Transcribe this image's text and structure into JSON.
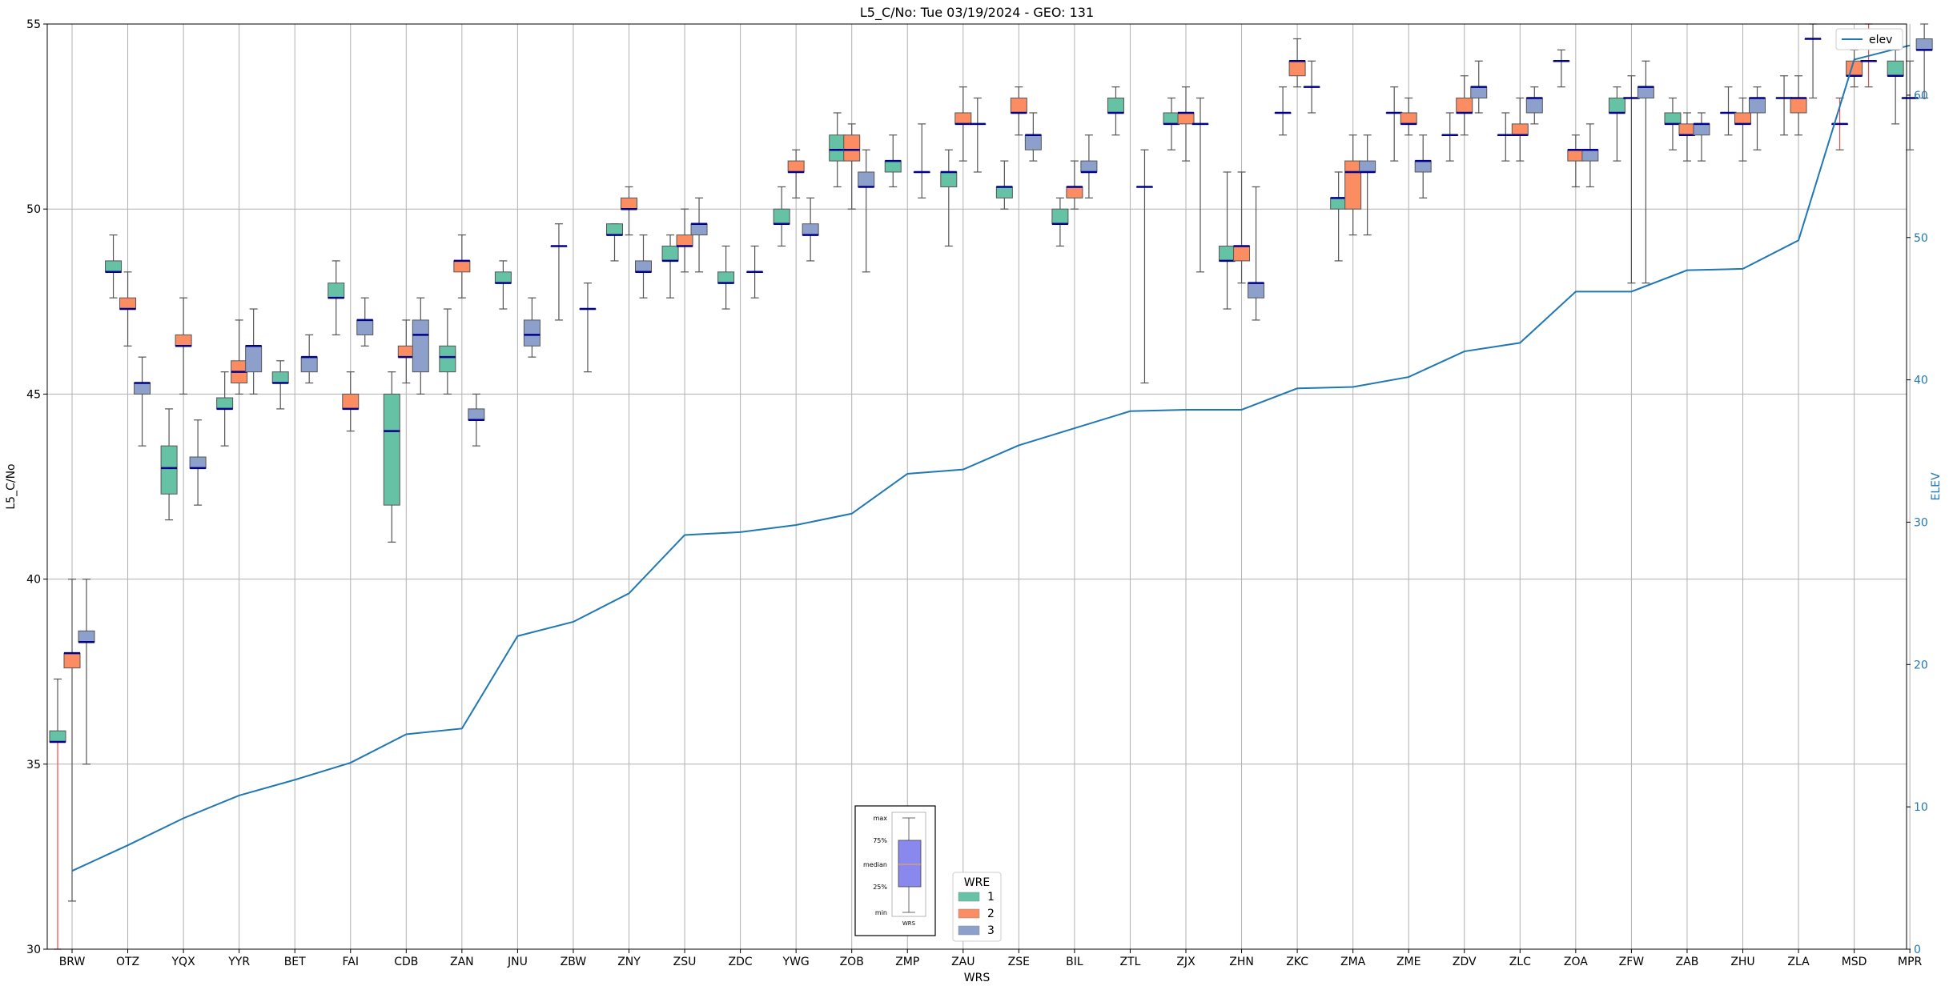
{
  "chart_data": {
    "type": "box",
    "title": "L5_C/No: Tue 03/19/2024 - GEO: 131",
    "xlabel": "WRS",
    "ylabel": "L5_C/No",
    "y2label": "ELEV",
    "ylim": [
      30,
      55
    ],
    "y2lim": [
      0,
      65
    ],
    "yticks": [
      30,
      35,
      40,
      45,
      50,
      55
    ],
    "y2ticks": [
      0,
      10,
      20,
      30,
      40,
      50,
      60
    ],
    "grid": true,
    "categories": [
      "BRW",
      "OTZ",
      "YQX",
      "YYR",
      "BET",
      "FAI",
      "CDB",
      "ZAN",
      "JNU",
      "ZBW",
      "ZNY",
      "ZSU",
      "ZDC",
      "YWG",
      "ZOB",
      "ZMP",
      "ZAU",
      "ZSE",
      "BIL",
      "ZTL",
      "ZJX",
      "ZHN",
      "ZKC",
      "ZMA",
      "ZME",
      "ZDV",
      "ZLC",
      "ZOA",
      "ZFW",
      "ZAB",
      "ZHU",
      "ZLA",
      "MSD",
      "MPR"
    ],
    "legend": {
      "title": "WRE",
      "placement": "bottom-center",
      "entries": [
        {
          "label": "1",
          "color": "#66c2a5"
        },
        {
          "label": "2",
          "color": "#fc8d62"
        },
        {
          "label": "3",
          "color": "#8da0cb"
        }
      ]
    },
    "line_legend": {
      "label": "elev",
      "color": "#1f77b4",
      "placement": "top-right"
    },
    "key_box": {
      "labels": [
        "max",
        "75%",
        "median",
        "25%",
        "min"
      ],
      "xlabel": "WRS"
    },
    "elev": [
      5.5,
      7.3,
      9.2,
      10.8,
      11.9,
      13.1,
      15.1,
      15.5,
      22.0,
      23.0,
      25.0,
      29.1,
      29.3,
      29.8,
      30.6,
      33.4,
      33.7,
      35.4,
      36.6,
      37.8,
      37.9,
      37.9,
      39.4,
      39.5,
      40.2,
      42.0,
      42.6,
      46.2,
      46.2,
      47.7,
      47.8,
      49.8,
      62.5,
      63.5
    ],
    "series": [
      {
        "name": "1",
        "color": "#66c2a5",
        "boxes": [
          {
            "cat": "BRW",
            "min": 30,
            "q1": 35.6,
            "median": 35.6,
            "q3": 35.9,
            "max": 37.3,
            "low_whisker_red": true
          },
          {
            "cat": "OTZ",
            "min": 47.6,
            "q1": 48.3,
            "median": 48.3,
            "q3": 48.6,
            "max": 49.3
          },
          {
            "cat": "YQX",
            "min": 41.6,
            "q1": 42.3,
            "median": 43.0,
            "q3": 43.6,
            "max": 44.6
          },
          {
            "cat": "YYR",
            "min": 43.6,
            "q1": 44.6,
            "median": 44.6,
            "q3": 44.9,
            "max": 45.6
          },
          {
            "cat": "BET",
            "min": 44.6,
            "q1": 45.3,
            "median": 45.3,
            "q3": 45.6,
            "max": 45.9
          },
          {
            "cat": "FAI",
            "min": 46.6,
            "q1": 47.6,
            "median": 47.6,
            "q3": 48.0,
            "max": 48.6
          },
          {
            "cat": "CDB",
            "min": 41.0,
            "q1": 42.0,
            "median": 44.0,
            "q3": 45.0,
            "max": 45.6
          },
          {
            "cat": "ZAN",
            "min": 45.0,
            "q1": 45.6,
            "median": 46.0,
            "q3": 46.3,
            "max": 47.3
          },
          {
            "cat": "JNU",
            "min": 47.3,
            "q1": 48.0,
            "median": 48.0,
            "q3": 48.3,
            "max": 48.6
          },
          {
            "cat": "ZBW",
            "min": 47.0,
            "q1": 49.0,
            "median": 49.0,
            "q3": 49.0,
            "max": 49.6
          },
          {
            "cat": "ZNY",
            "min": 48.6,
            "q1": 49.3,
            "median": 49.3,
            "q3": 49.6,
            "max": 49.6
          },
          {
            "cat": "ZSU",
            "min": 47.6,
            "q1": 48.6,
            "median": 48.6,
            "q3": 49.0,
            "max": 49.3
          },
          {
            "cat": "ZDC",
            "min": 47.3,
            "q1": 48.0,
            "median": 48.0,
            "q3": 48.3,
            "max": 49.0
          },
          {
            "cat": "YWG",
            "min": 49.0,
            "q1": 49.6,
            "median": 49.6,
            "q3": 50.0,
            "max": 50.6
          },
          {
            "cat": "ZOB",
            "min": 50.6,
            "q1": 51.3,
            "median": 51.6,
            "q3": 52.0,
            "max": 52.6
          },
          {
            "cat": "ZMP",
            "min": 50.6,
            "q1": 51.0,
            "median": 51.3,
            "q3": 51.3,
            "max": 52.0
          },
          {
            "cat": "ZAU",
            "min": 49.0,
            "q1": 50.6,
            "median": 51.0,
            "q3": 51.0,
            "max": 51.6
          },
          {
            "cat": "ZSE",
            "min": 50.0,
            "q1": 50.3,
            "median": 50.6,
            "q3": 50.6,
            "max": 51.3
          },
          {
            "cat": "BIL",
            "min": 49.0,
            "q1": 49.6,
            "median": 49.6,
            "q3": 50.0,
            "max": 50.3
          },
          {
            "cat": "ZTL",
            "min": 52.0,
            "q1": 52.6,
            "median": 52.6,
            "q3": 53.0,
            "max": 53.3
          },
          {
            "cat": "ZJX",
            "min": 51.6,
            "q1": 52.3,
            "median": 52.3,
            "q3": 52.6,
            "max": 53.0
          },
          {
            "cat": "ZHN",
            "min": 47.3,
            "q1": 48.6,
            "median": 48.6,
            "q3": 49.0,
            "max": 51.0
          },
          {
            "cat": "ZKC",
            "min": 52.0,
            "q1": 52.6,
            "median": 52.6,
            "q3": 52.6,
            "max": 53.3
          },
          {
            "cat": "ZMA",
            "min": 48.6,
            "q1": 50.0,
            "median": 50.3,
            "q3": 50.3,
            "max": 51.0
          },
          {
            "cat": "ZME",
            "min": 51.3,
            "q1": 52.6,
            "median": 52.6,
            "q3": 52.6,
            "max": 53.3
          },
          {
            "cat": "ZDV",
            "min": 51.3,
            "q1": 52.0,
            "median": 52.0,
            "q3": 52.0,
            "max": 52.6
          },
          {
            "cat": "ZLC",
            "min": 51.3,
            "q1": 52.0,
            "median": 52.0,
            "q3": 52.0,
            "max": 52.6
          },
          {
            "cat": "ZOA",
            "min": 53.3,
            "q1": 54.0,
            "median": 54.0,
            "q3": 54.0,
            "max": 54.3
          },
          {
            "cat": "ZFW",
            "min": 51.3,
            "q1": 52.6,
            "median": 52.6,
            "q3": 53.0,
            "max": 53.3
          },
          {
            "cat": "ZAB",
            "min": 51.6,
            "q1": 52.3,
            "median": 52.3,
            "q3": 52.6,
            "max": 53.0
          },
          {
            "cat": "ZHU",
            "min": 52.0,
            "q1": 52.6,
            "median": 52.6,
            "q3": 52.6,
            "max": 53.3
          },
          {
            "cat": "ZLA",
            "min": 52.0,
            "q1": 53.0,
            "median": 53.0,
            "q3": 53.0,
            "max": 53.6
          },
          {
            "cat": "MSD",
            "min": 51.6,
            "q1": 52.3,
            "median": 52.3,
            "q3": 52.3,
            "max": 53.0,
            "whisker_red": true
          },
          {
            "cat": "MPR",
            "min": 52.3,
            "q1": 53.6,
            "median": 53.6,
            "q3": 54.0,
            "max": 54.3
          }
        ]
      },
      {
        "name": "2",
        "color": "#fc8d62",
        "boxes": [
          {
            "cat": "BRW",
            "min": 31.3,
            "q1": 37.6,
            "median": 38.0,
            "q3": 38.0,
            "max": 40.0
          },
          {
            "cat": "OTZ",
            "min": 46.3,
            "q1": 47.3,
            "median": 47.3,
            "q3": 47.6,
            "max": 48.3
          },
          {
            "cat": "YQX",
            "min": 45.0,
            "q1": 46.3,
            "median": 46.3,
            "q3": 46.6,
            "max": 47.6
          },
          {
            "cat": "YYR",
            "min": 45.0,
            "q1": 45.3,
            "median": 45.6,
            "q3": 45.9,
            "max": 47.0
          },
          {
            "cat": "FAI",
            "min": 44.0,
            "q1": 44.6,
            "median": 44.6,
            "q3": 45.0,
            "max": 45.6
          },
          {
            "cat": "CDB",
            "min": 45.3,
            "q1": 46.0,
            "median": 46.0,
            "q3": 46.3,
            "max": 47.0
          },
          {
            "cat": "ZAN",
            "min": 47.6,
            "q1": 48.3,
            "median": 48.6,
            "q3": 48.6,
            "max": 49.3
          },
          {
            "cat": "ZNY",
            "min": 49.3,
            "q1": 50.0,
            "median": 50.0,
            "q3": 50.3,
            "max": 50.6
          },
          {
            "cat": "ZSU",
            "min": 48.3,
            "q1": 49.0,
            "median": 49.0,
            "q3": 49.3,
            "max": 50.0
          },
          {
            "cat": "YWG",
            "min": 50.3,
            "q1": 51.0,
            "median": 51.0,
            "q3": 51.3,
            "max": 51.6
          },
          {
            "cat": "ZOB",
            "min": 50.0,
            "q1": 51.3,
            "median": 51.6,
            "q3": 52.0,
            "max": 52.3
          },
          {
            "cat": "ZAU",
            "min": 51.3,
            "q1": 52.3,
            "median": 52.3,
            "q3": 52.6,
            "max": 53.3
          },
          {
            "cat": "ZSE",
            "min": 52.0,
            "q1": 52.6,
            "median": 52.6,
            "q3": 53.0,
            "max": 53.3
          },
          {
            "cat": "BIL",
            "min": 50.0,
            "q1": 50.3,
            "median": 50.6,
            "q3": 50.6,
            "max": 51.3
          },
          {
            "cat": "ZJX",
            "min": 51.3,
            "q1": 52.3,
            "median": 52.6,
            "q3": 52.6,
            "max": 53.3
          },
          {
            "cat": "ZHN",
            "min": 48.0,
            "q1": 48.6,
            "median": 49.0,
            "q3": 49.0,
            "max": 51.0
          },
          {
            "cat": "ZKC",
            "min": 53.3,
            "q1": 53.6,
            "median": 54.0,
            "q3": 54.0,
            "max": 54.6
          },
          {
            "cat": "ZMA",
            "min": 49.3,
            "q1": 50.0,
            "median": 51.0,
            "q3": 51.3,
            "max": 52.0
          },
          {
            "cat": "ZME",
            "min": 52.0,
            "q1": 52.3,
            "median": 52.3,
            "q3": 52.6,
            "max": 53.0
          },
          {
            "cat": "ZDV",
            "min": 52.0,
            "q1": 52.6,
            "median": 52.6,
            "q3": 53.0,
            "max": 53.6
          },
          {
            "cat": "ZLC",
            "min": 51.3,
            "q1": 52.0,
            "median": 52.0,
            "q3": 52.3,
            "max": 53.0
          },
          {
            "cat": "ZOA",
            "min": 50.6,
            "q1": 51.3,
            "median": 51.6,
            "q3": 51.6,
            "max": 52.0
          },
          {
            "cat": "ZFW",
            "min": 48.0,
            "q1": 53.0,
            "median": 53.0,
            "q3": 53.0,
            "max": 53.6
          },
          {
            "cat": "ZAB",
            "min": 51.3,
            "q1": 52.0,
            "median": 52.0,
            "q3": 52.3,
            "max": 52.6
          },
          {
            "cat": "ZHU",
            "min": 51.3,
            "q1": 52.3,
            "median": 52.3,
            "q3": 52.6,
            "max": 53.0
          },
          {
            "cat": "ZLA",
            "min": 52.0,
            "q1": 52.6,
            "median": 53.0,
            "q3": 53.0,
            "max": 53.6
          },
          {
            "cat": "MSD",
            "min": 53.3,
            "q1": 53.6,
            "median": 53.6,
            "q3": 54.0,
            "max": 54.3
          },
          {
            "cat": "MPR",
            "min": 51.6,
            "q1": 53.0,
            "median": 53.0,
            "q3": 53.0,
            "max": 54.0
          }
        ]
      },
      {
        "name": "3",
        "color": "#8da0cb",
        "boxes": [
          {
            "cat": "BRW",
            "min": 35.0,
            "q1": 38.3,
            "median": 38.3,
            "q3": 38.6,
            "max": 40.0
          },
          {
            "cat": "OTZ",
            "min": 43.6,
            "q1": 45.0,
            "median": 45.3,
            "q3": 45.3,
            "max": 46.0
          },
          {
            "cat": "YQX",
            "min": 42.0,
            "q1": 43.0,
            "median": 43.0,
            "q3": 43.3,
            "max": 44.3
          },
          {
            "cat": "YYR",
            "min": 45.0,
            "q1": 45.6,
            "median": 46.3,
            "q3": 46.3,
            "max": 47.3
          },
          {
            "cat": "BET",
            "min": 45.3,
            "q1": 45.6,
            "median": 46.0,
            "q3": 46.0,
            "max": 46.6
          },
          {
            "cat": "FAI",
            "min": 46.3,
            "q1": 46.6,
            "median": 47.0,
            "q3": 47.0,
            "max": 47.6
          },
          {
            "cat": "CDB",
            "min": 45.0,
            "q1": 45.6,
            "median": 46.6,
            "q3": 47.0,
            "max": 47.6
          },
          {
            "cat": "ZAN",
            "min": 43.6,
            "q1": 44.3,
            "median": 44.3,
            "q3": 44.6,
            "max": 45.0
          },
          {
            "cat": "JNU",
            "min": 46.0,
            "q1": 46.3,
            "median": 46.6,
            "q3": 47.0,
            "max": 47.6
          },
          {
            "cat": "ZBW",
            "min": 45.6,
            "q1": 47.3,
            "median": 47.3,
            "q3": 47.3,
            "max": 48.0
          },
          {
            "cat": "ZNY",
            "min": 47.6,
            "q1": 48.3,
            "median": 48.3,
            "q3": 48.6,
            "max": 49.3
          },
          {
            "cat": "ZSU",
            "min": 48.3,
            "q1": 49.3,
            "median": 49.6,
            "q3": 49.6,
            "max": 50.3
          },
          {
            "cat": "ZDC",
            "min": 47.6,
            "q1": 48.3,
            "median": 48.3,
            "q3": 48.3,
            "max": 49.0
          },
          {
            "cat": "YWG",
            "min": 48.6,
            "q1": 49.3,
            "median": 49.3,
            "q3": 49.6,
            "max": 50.3
          },
          {
            "cat": "ZOB",
            "min": 48.3,
            "q1": 50.6,
            "median": 50.6,
            "q3": 51.0,
            "max": 51.6
          },
          {
            "cat": "ZMP",
            "min": 50.3,
            "q1": 51.0,
            "median": 51.0,
            "q3": 51.0,
            "max": 52.3
          },
          {
            "cat": "ZAU",
            "min": 51.0,
            "q1": 52.3,
            "median": 52.3,
            "q3": 52.3,
            "max": 53.0
          },
          {
            "cat": "ZSE",
            "min": 51.3,
            "q1": 51.6,
            "median": 52.0,
            "q3": 52.0,
            "max": 52.6
          },
          {
            "cat": "BIL",
            "min": 50.3,
            "q1": 51.0,
            "median": 51.0,
            "q3": 51.3,
            "max": 52.0
          },
          {
            "cat": "ZTL",
            "min": 45.3,
            "q1": 50.6,
            "median": 50.6,
            "q3": 50.6,
            "max": 51.6
          },
          {
            "cat": "ZJX",
            "min": 48.3,
            "q1": 52.3,
            "median": 52.3,
            "q3": 52.3,
            "max": 53.0
          },
          {
            "cat": "ZHN",
            "min": 47.0,
            "q1": 47.6,
            "median": 48.0,
            "q3": 48.0,
            "max": 50.6
          },
          {
            "cat": "ZKC",
            "min": 52.6,
            "q1": 53.3,
            "median": 53.3,
            "q3": 53.3,
            "max": 54.0
          },
          {
            "cat": "ZMA",
            "min": 49.3,
            "q1": 51.0,
            "median": 51.0,
            "q3": 51.3,
            "max": 52.0
          },
          {
            "cat": "ZME",
            "min": 50.3,
            "q1": 51.0,
            "median": 51.3,
            "q3": 51.3,
            "max": 52.0
          },
          {
            "cat": "ZDV",
            "min": 52.6,
            "q1": 53.0,
            "median": 53.3,
            "q3": 53.3,
            "max": 54.0
          },
          {
            "cat": "ZLC",
            "min": 52.3,
            "q1": 52.6,
            "median": 53.0,
            "q3": 53.0,
            "max": 53.3
          },
          {
            "cat": "ZOA",
            "min": 50.6,
            "q1": 51.3,
            "median": 51.6,
            "q3": 51.6,
            "max": 52.3
          },
          {
            "cat": "ZFW",
            "min": 48.0,
            "q1": 53.0,
            "median": 53.3,
            "q3": 53.3,
            "max": 54.0
          },
          {
            "cat": "ZAB",
            "min": 51.3,
            "q1": 52.0,
            "median": 52.3,
            "q3": 52.3,
            "max": 52.6
          },
          {
            "cat": "ZHU",
            "min": 51.6,
            "q1": 52.6,
            "median": 53.0,
            "q3": 53.0,
            "max": 53.3
          },
          {
            "cat": "ZLA",
            "min": 53.0,
            "q1": 54.6,
            "median": 54.6,
            "q3": 54.6,
            "max": 55.0
          },
          {
            "cat": "MSD",
            "min": 53.3,
            "q1": 54.0,
            "median": 54.0,
            "q3": 54.0,
            "max": 55.0,
            "whisker_red": true
          },
          {
            "cat": "MPR",
            "min": 53.0,
            "q1": 54.3,
            "median": 54.3,
            "q3": 54.6,
            "max": 55.0
          }
        ]
      }
    ]
  }
}
